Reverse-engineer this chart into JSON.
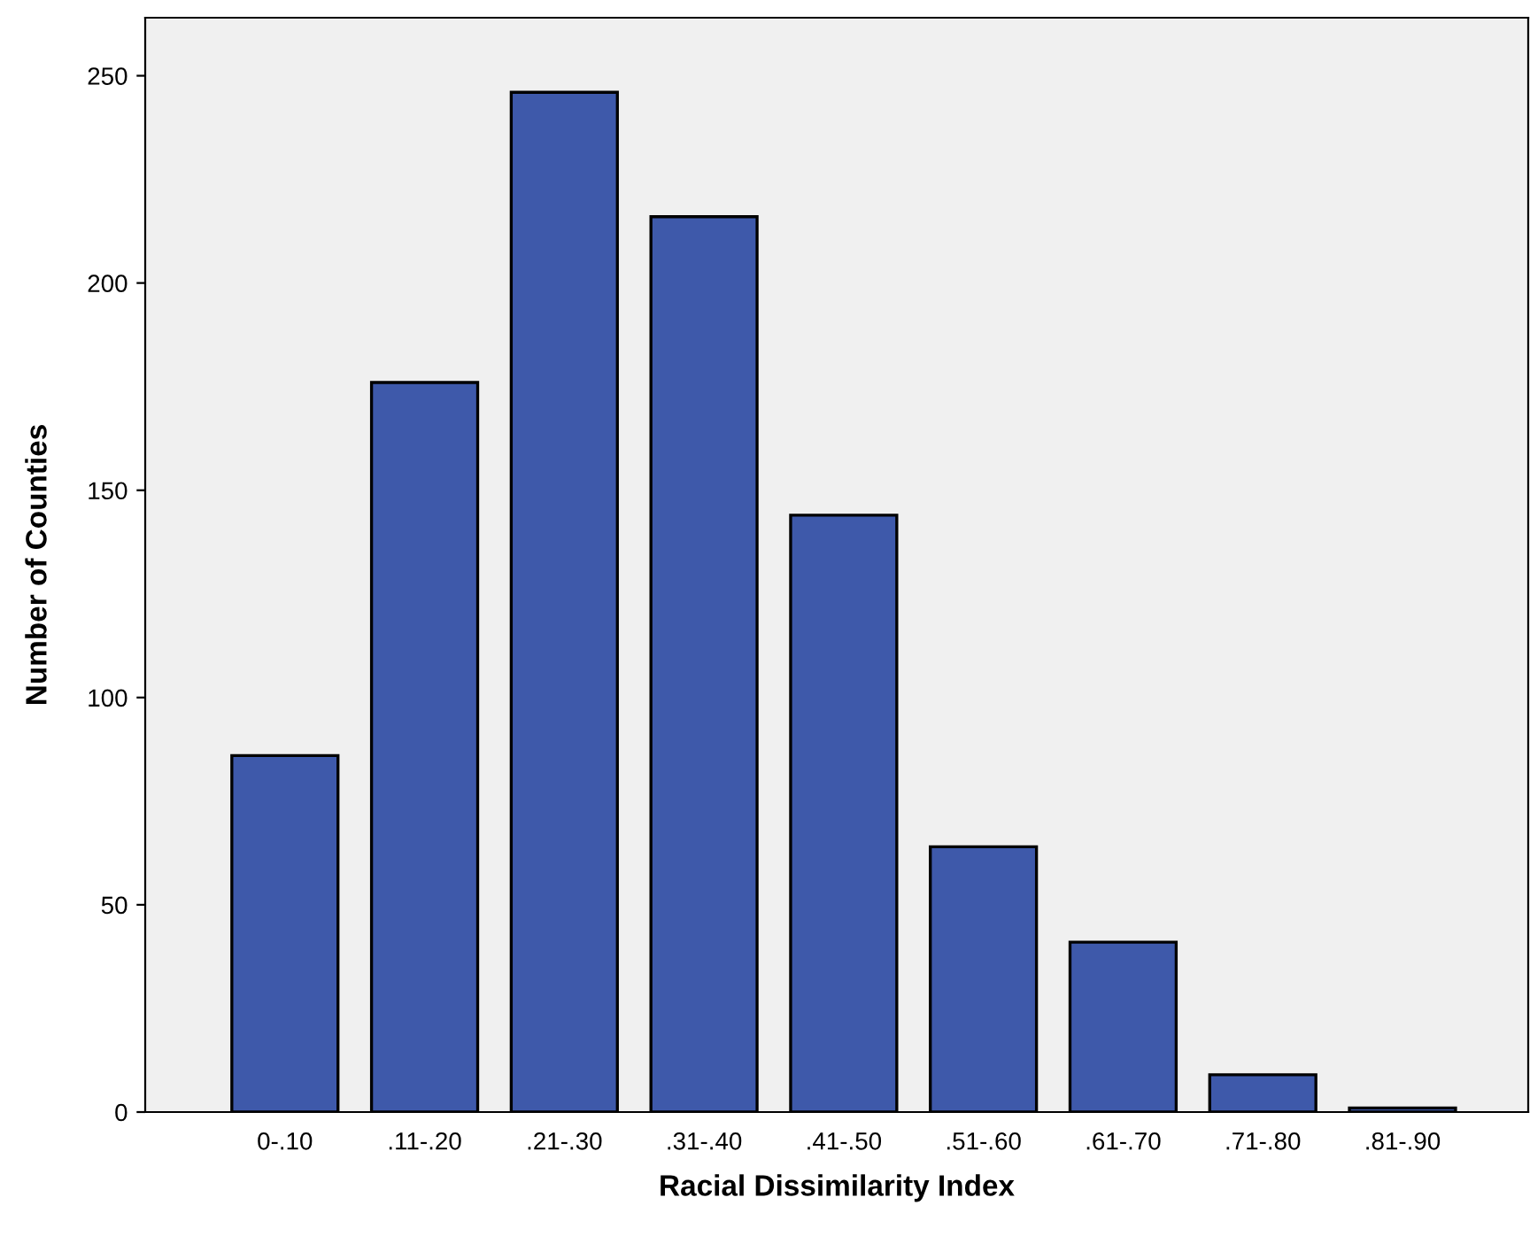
{
  "chart_data": {
    "type": "bar",
    "xlabel": "Racial Dissimilarity Index",
    "ylabel": "Number of Counties",
    "categories": [
      "0-.10",
      ".11-.20",
      ".21-.30",
      ".31-.40",
      ".41-.50",
      ".51-.60",
      ".61-.70",
      ".71-.80",
      ".81-.90"
    ],
    "values": [
      86,
      176,
      246,
      216,
      144,
      64,
      41,
      9,
      1
    ],
    "color": "#3e59aa",
    "ylim": [
      0,
      264
    ],
    "yticks": [
      0,
      50,
      100,
      150,
      200,
      250
    ],
    "grid": false,
    "legend": false
  }
}
